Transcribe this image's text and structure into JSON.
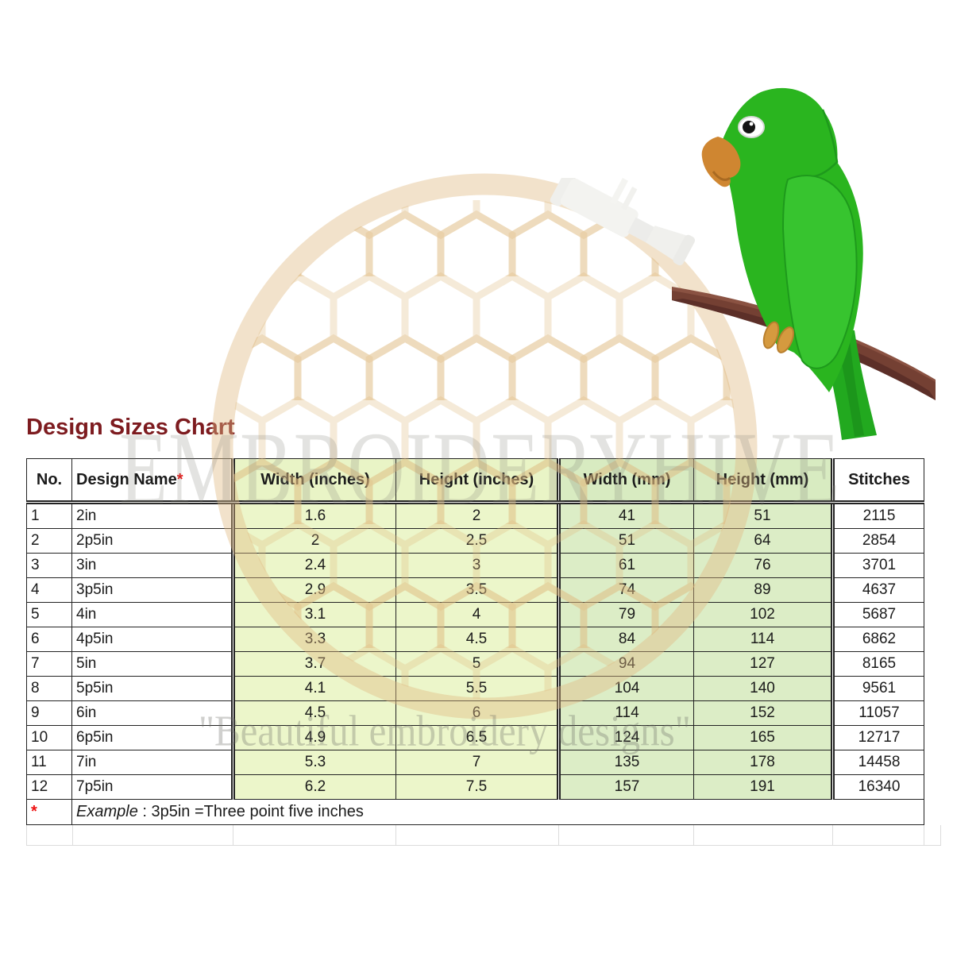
{
  "title": "Design Sizes Chart",
  "watermark": {
    "brand": "EMBROIDERYHIVE",
    "tagline": "\"Beautiful embroidery designs\""
  },
  "icons": {
    "parrot": "green-parrot-embroidery",
    "hive": "beehive-hoop-watermark",
    "bobbin": "thread-bobbin-watermark"
  },
  "colors": {
    "title": "#7d1b1f",
    "inches_bg": "#ecf6ca",
    "mm_bg": "#dcedc6",
    "border": "#232323",
    "asterisk": "#ee1111",
    "parrot_green": "#2ab51f",
    "beak_orange": "#cf8631",
    "branch_brown": "#744033"
  },
  "table": {
    "columns": [
      "No.",
      "Design Name",
      "Width (inches)",
      "Height (inches)",
      "Width (mm)",
      "Height (mm)",
      "Stitches"
    ],
    "name_col_marker": "*",
    "rows": [
      [
        "1",
        "2in",
        "1.6",
        "2",
        "41",
        "51",
        "2115"
      ],
      [
        "2",
        "2p5in",
        "2",
        "2.5",
        "51",
        "64",
        "2854"
      ],
      [
        "3",
        "3in",
        "2.4",
        "3",
        "61",
        "76",
        "3701"
      ],
      [
        "4",
        "3p5in",
        "2.9",
        "3.5",
        "74",
        "89",
        "4637"
      ],
      [
        "5",
        "4in",
        "3.1",
        "4",
        "79",
        "102",
        "5687"
      ],
      [
        "6",
        "4p5in",
        "3.3",
        "4.5",
        "84",
        "114",
        "6862"
      ],
      [
        "7",
        "5in",
        "3.7",
        "5",
        "94",
        "127",
        "8165"
      ],
      [
        "8",
        "5p5in",
        "4.1",
        "5.5",
        "104",
        "140",
        "9561"
      ],
      [
        "9",
        "6in",
        "4.5",
        "6",
        "114",
        "152",
        "11057"
      ],
      [
        "10",
        "6p5in",
        "4.9",
        "6.5",
        "124",
        "165",
        "12717"
      ],
      [
        "11",
        "7in",
        "5.3",
        "7",
        "135",
        "178",
        "14458"
      ],
      [
        "12",
        "7p5in",
        "6.2",
        "7.5",
        "157",
        "191",
        "16340"
      ]
    ],
    "footnote": {
      "marker": "*",
      "label": "Example",
      "text": " : 3p5in =Three point five inches"
    }
  }
}
